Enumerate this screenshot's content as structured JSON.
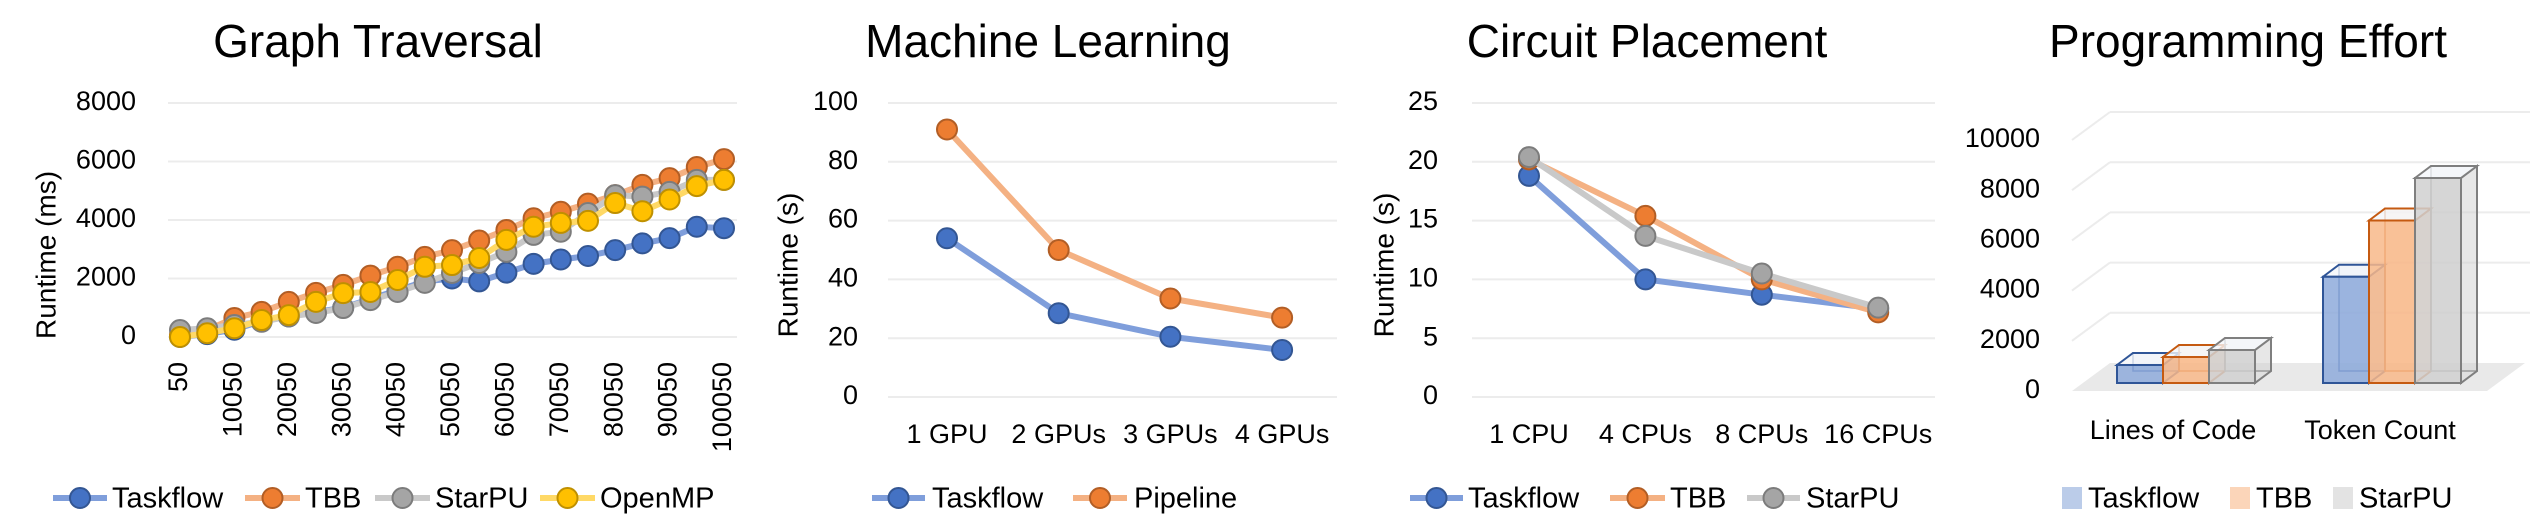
{
  "chart_data": [
    {
      "type": "line",
      "title": "Graph Traversal",
      "xlabel": "",
      "ylabel": "Runtime (ms)",
      "ylim": [
        0,
        8000
      ],
      "yticks": [
        "0",
        "2000",
        "4000",
        "6000",
        "8000"
      ],
      "x": [
        50,
        5050,
        10050,
        15050,
        20050,
        25050,
        30050,
        35050,
        40050,
        45050,
        50050,
        55050,
        60050,
        65050,
        70050,
        75050,
        80050,
        85050,
        90050,
        95050,
        100050
      ],
      "xtick_labels": [
        "50",
        "10050",
        "20050",
        "30050",
        "40050",
        "50050",
        "60050",
        "70050",
        "80050",
        "90050",
        "100050"
      ],
      "grid": true,
      "legend": "bottom",
      "series": [
        {
          "name": "Taskflow",
          "color": "#4472c4",
          "line": "#7f9edb",
          "values": [
            0,
            100,
            250,
            550,
            700,
            850,
            1000,
            1300,
            1600,
            1900,
            2000,
            1900,
            2200,
            2500,
            2650,
            2770,
            2970,
            3200,
            3380,
            3770,
            3720
          ]
        },
        {
          "name": "TBB",
          "color": "#ed7d31",
          "line": "#f4b183",
          "values": [
            70,
            240,
            650,
            860,
            1200,
            1510,
            1780,
            2100,
            2400,
            2740,
            2970,
            3300,
            3660,
            4060,
            4280,
            4560,
            4850,
            5200,
            5430,
            5810,
            6080
          ]
        },
        {
          "name": "StarPU",
          "color": "#a5a5a5",
          "line": "#c9c9c9",
          "values": [
            240,
            300,
            410,
            520,
            700,
            820,
            990,
            1260,
            1540,
            1850,
            2190,
            2530,
            2910,
            3490,
            3600,
            4240,
            4850,
            4800,
            4960,
            5370,
            5370
          ]
        },
        {
          "name": "OpenMP",
          "color": "#ffc000",
          "line": "#ffd966",
          "values": [
            0,
            130,
            300,
            580,
            750,
            1200,
            1500,
            1540,
            1950,
            2400,
            2460,
            2700,
            3320,
            3770,
            3900,
            3970,
            4580,
            4300,
            4700,
            5160,
            5370
          ]
        }
      ]
    },
    {
      "type": "line",
      "title": "Machine Learning",
      "xlabel": "",
      "ylabel": "Runtime (s)",
      "ylim": [
        0,
        100
      ],
      "yticks": [
        "0",
        "20",
        "40",
        "60",
        "80",
        "100"
      ],
      "categories": [
        "1 GPU",
        "2 GPUs",
        "3 GPUs",
        "4 GPUs"
      ],
      "grid": true,
      "legend": "bottom",
      "series": [
        {
          "name": "Taskflow",
          "color": "#4472c4",
          "line": "#7f9edb",
          "values": [
            54,
            28.5,
            20.5,
            16
          ]
        },
        {
          "name": "Pipeline",
          "color": "#ed7d31",
          "line": "#f4b183",
          "values": [
            91,
            50,
            33.5,
            27
          ]
        }
      ]
    },
    {
      "type": "line",
      "title": "Circuit Placement",
      "xlabel": "",
      "ylabel": "Runtime (s)",
      "ylim": [
        0,
        25
      ],
      "yticks": [
        "0",
        "5",
        "10",
        "15",
        "20",
        "25"
      ],
      "categories": [
        "1 CPU",
        "4 CPUs",
        "8 CPUs",
        "16 CPUs"
      ],
      "grid": true,
      "legend": "bottom",
      "series": [
        {
          "name": "Taskflow",
          "color": "#4472c4",
          "line": "#7f9edb",
          "values": [
            18.8,
            10.0,
            8.7,
            7.5
          ]
        },
        {
          "name": "TBB",
          "color": "#ed7d31",
          "line": "#f4b183",
          "values": [
            20.2,
            15.4,
            10.0,
            7.2
          ]
        },
        {
          "name": "StarPU",
          "color": "#a5a5a5",
          "line": "#c9c9c9",
          "values": [
            20.4,
            13.7,
            10.5,
            7.6
          ]
        }
      ]
    },
    {
      "type": "bar",
      "style": "3d-clustered",
      "title": "Programming Effort",
      "xlabel": "",
      "ylabel": "",
      "ylim": [
        0,
        10000
      ],
      "yticks": [
        "0",
        "2000",
        "4000",
        "6000",
        "8000",
        "10000"
      ],
      "categories": [
        "Lines of Code",
        "Token Count"
      ],
      "grid": true,
      "legend": "bottom",
      "series": [
        {
          "name": "Taskflow",
          "color": "#8eaadb",
          "stroke": "#2f5597",
          "values": [
            720,
            4250
          ]
        },
        {
          "name": "TBB",
          "color": "#f8b98a",
          "stroke": "#c55a11",
          "values": [
            1040,
            6500
          ]
        },
        {
          "name": "StarPU",
          "color": "#d0d0d0",
          "stroke": "#7f7f7f",
          "values": [
            1320,
            8200
          ]
        }
      ]
    }
  ]
}
